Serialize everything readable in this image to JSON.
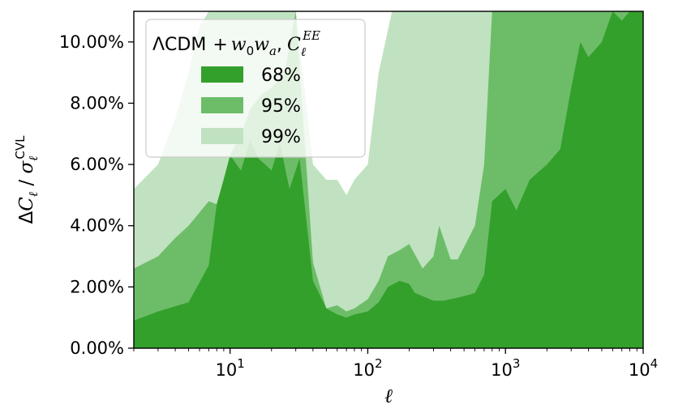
{
  "chart_data": {
    "type": "area",
    "title": "",
    "xlabel": "ℓ",
    "ylabel": "ΔC_ℓ / σ_ℓ^CVL",
    "xscale": "log",
    "xlim": [
      2,
      10000
    ],
    "ylim": [
      0,
      0.11
    ],
    "x_ticks": [
      {
        "value": 10,
        "label": "10",
        "exp": "1"
      },
      {
        "value": 100,
        "label": "10",
        "exp": "2"
      },
      {
        "value": 1000,
        "label": "10",
        "exp": "3"
      },
      {
        "value": 10000,
        "label": "10",
        "exp": "4"
      }
    ],
    "y_ticks": [
      {
        "value": 0.0,
        "label": "0.00%"
      },
      {
        "value": 0.02,
        "label": "2.00%"
      },
      {
        "value": 0.04,
        "label": "4.00%"
      },
      {
        "value": 0.06,
        "label": "6.00%"
      },
      {
        "value": 0.08,
        "label": "8.00%"
      },
      {
        "value": 0.1,
        "label": "10.00%"
      }
    ],
    "grid": false,
    "legend": {
      "position": "top-left",
      "title": "ΛCDM + w0wa, C_ℓ^EE",
      "title_parts": {
        "pre": "ΛCDM",
        "plus": "+",
        "w": "w",
        "w_sub0": "0",
        "w2": "w",
        "w_sub_a": "a",
        "comma": ",",
        "c": "C",
        "c_sub": "ℓ",
        "c_sup": "EE"
      }
    },
    "colors": {
      "68": "#33a02c",
      "95": "#6dbd68",
      "99": "#c0e2c0"
    },
    "series": [
      {
        "name": "68%",
        "x": [
          2,
          3,
          5,
          7,
          8,
          9,
          10,
          12,
          14,
          16,
          18,
          20,
          23,
          27,
          32,
          40,
          50,
          60,
          70,
          80,
          100,
          120,
          140,
          170,
          200,
          220,
          250,
          300,
          350,
          400,
          500,
          600,
          700,
          800,
          1000,
          1200,
          1500,
          2000,
          2500,
          3000,
          3500,
          4000,
          5000,
          6000,
          7000,
          8000,
          10000
        ],
        "y": [
          0.009,
          0.012,
          0.015,
          0.027,
          0.047,
          0.055,
          0.063,
          0.058,
          0.068,
          0.062,
          0.06,
          0.058,
          0.067,
          0.052,
          0.062,
          0.022,
          0.013,
          0.011,
          0.01,
          0.011,
          0.012,
          0.015,
          0.02,
          0.022,
          0.021,
          0.018,
          0.017,
          0.0155,
          0.0155,
          0.016,
          0.017,
          0.018,
          0.024,
          0.048,
          0.052,
          0.045,
          0.055,
          0.06,
          0.065,
          0.085,
          0.1,
          0.095,
          0.1,
          0.11,
          0.107,
          0.11,
          0.11
        ]
      },
      {
        "name": "95%",
        "x": [
          2,
          3,
          4,
          5,
          7,
          8,
          10,
          12,
          14,
          17,
          20,
          25,
          30,
          40,
          50,
          60,
          70,
          80,
          100,
          120,
          140,
          170,
          200,
          250,
          300,
          330,
          400,
          450,
          500,
          600,
          700,
          800,
          1000,
          1500,
          2000,
          3000,
          4000,
          5000,
          7000,
          10000
        ],
        "y": [
          0.026,
          0.03,
          0.036,
          0.04,
          0.048,
          0.047,
          0.063,
          0.07,
          0.078,
          0.083,
          0.085,
          0.09,
          0.11,
          0.028,
          0.013,
          0.014,
          0.012,
          0.013,
          0.016,
          0.022,
          0.03,
          0.032,
          0.034,
          0.026,
          0.03,
          0.04,
          0.029,
          0.029,
          0.033,
          0.04,
          0.06,
          0.11,
          0.11,
          0.11,
          0.11,
          0.11,
          0.11,
          0.11,
          0.11,
          0.11
        ]
      },
      {
        "name": "99%",
        "x": [
          2,
          3,
          4,
          5,
          6,
          7,
          8,
          9,
          10,
          12,
          15,
          20,
          30,
          40,
          50,
          60,
          70,
          80,
          100,
          120,
          150,
          170,
          200,
          250,
          300,
          400,
          500,
          600,
          700,
          800,
          1000,
          1500,
          2000,
          10000
        ],
        "y": [
          0.052,
          0.06,
          0.075,
          0.09,
          0.105,
          0.11,
          0.11,
          0.11,
          0.11,
          0.11,
          0.11,
          0.11,
          0.11,
          0.06,
          0.055,
          0.055,
          0.05,
          0.055,
          0.06,
          0.09,
          0.11,
          0.11,
          0.11,
          0.11,
          0.11,
          0.11,
          0.11,
          0.11,
          0.11,
          0.11,
          0.11,
          0.11,
          0.11,
          0.11
        ]
      }
    ]
  }
}
